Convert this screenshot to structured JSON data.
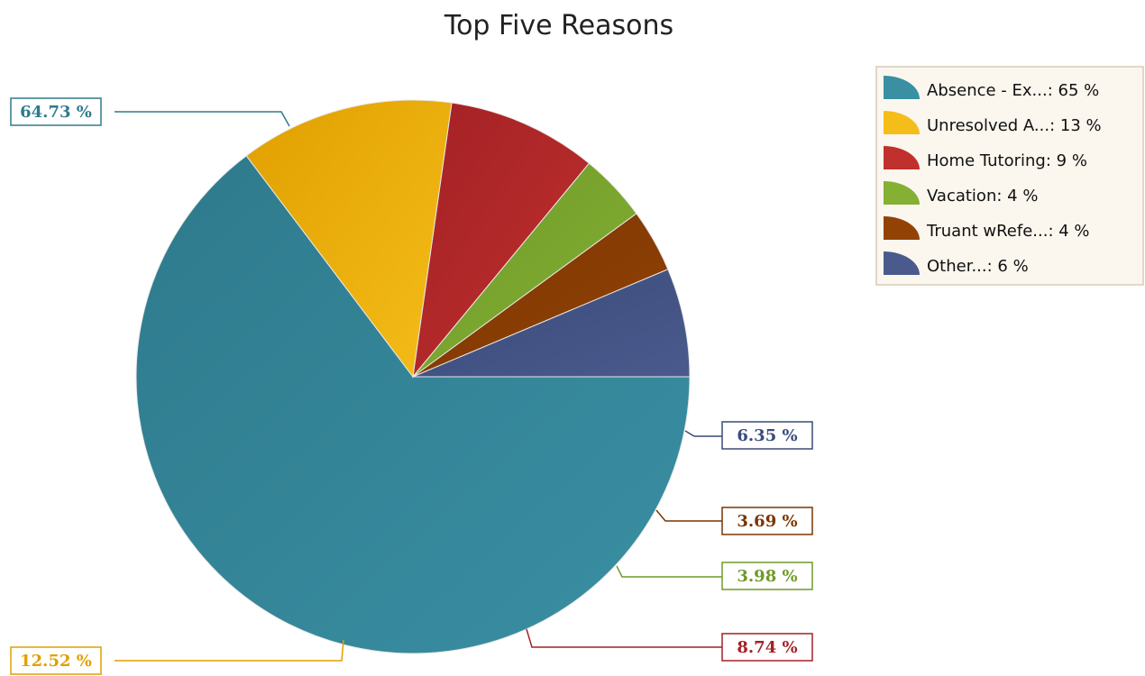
{
  "chart_data": {
    "type": "pie",
    "title": "Top Five Reasons",
    "slices": [
      {
        "name": "Absence - Ex...",
        "value": 64.73,
        "label": "64.73 %",
        "legend": "Absence - Ex...: 65 %",
        "color": "#2e7a8c",
        "color_light": "#3a8fa3"
      },
      {
        "name": "Unresolved A...",
        "value": 12.52,
        "label": "12.52 %",
        "legend": "Unresolved A...: 13 %",
        "color": "#e0a000",
        "color_light": "#f5bd1a"
      },
      {
        "name": "Home Tutoring",
        "value": 8.74,
        "label": "8.74 %",
        "legend": "Home Tutoring: 9 %",
        "color": "#a32126",
        "color_light": "#c0302c"
      },
      {
        "name": "Vacation",
        "value": 3.98,
        "label": "3.98 %",
        "legend": "Vacation: 4 %",
        "color": "#6f9a28",
        "color_light": "#84b034"
      },
      {
        "name": "Truant wRefe...",
        "value": 3.69,
        "label": "3.69 %",
        "legend": "Truant wRefe...: 4 %",
        "color": "#7a3600",
        "color_light": "#934206"
      },
      {
        "name": "Other...",
        "value": 6.35,
        "label": "6.35 %",
        "legend": "Other...: 6 %",
        "color": "#3a4a7a",
        "color_light": "#4a5a8c"
      }
    ],
    "legend_position": "top-right"
  },
  "colors": {
    "legend_background": "#fbf6ee",
    "legend_border": "#d8cbb5"
  }
}
